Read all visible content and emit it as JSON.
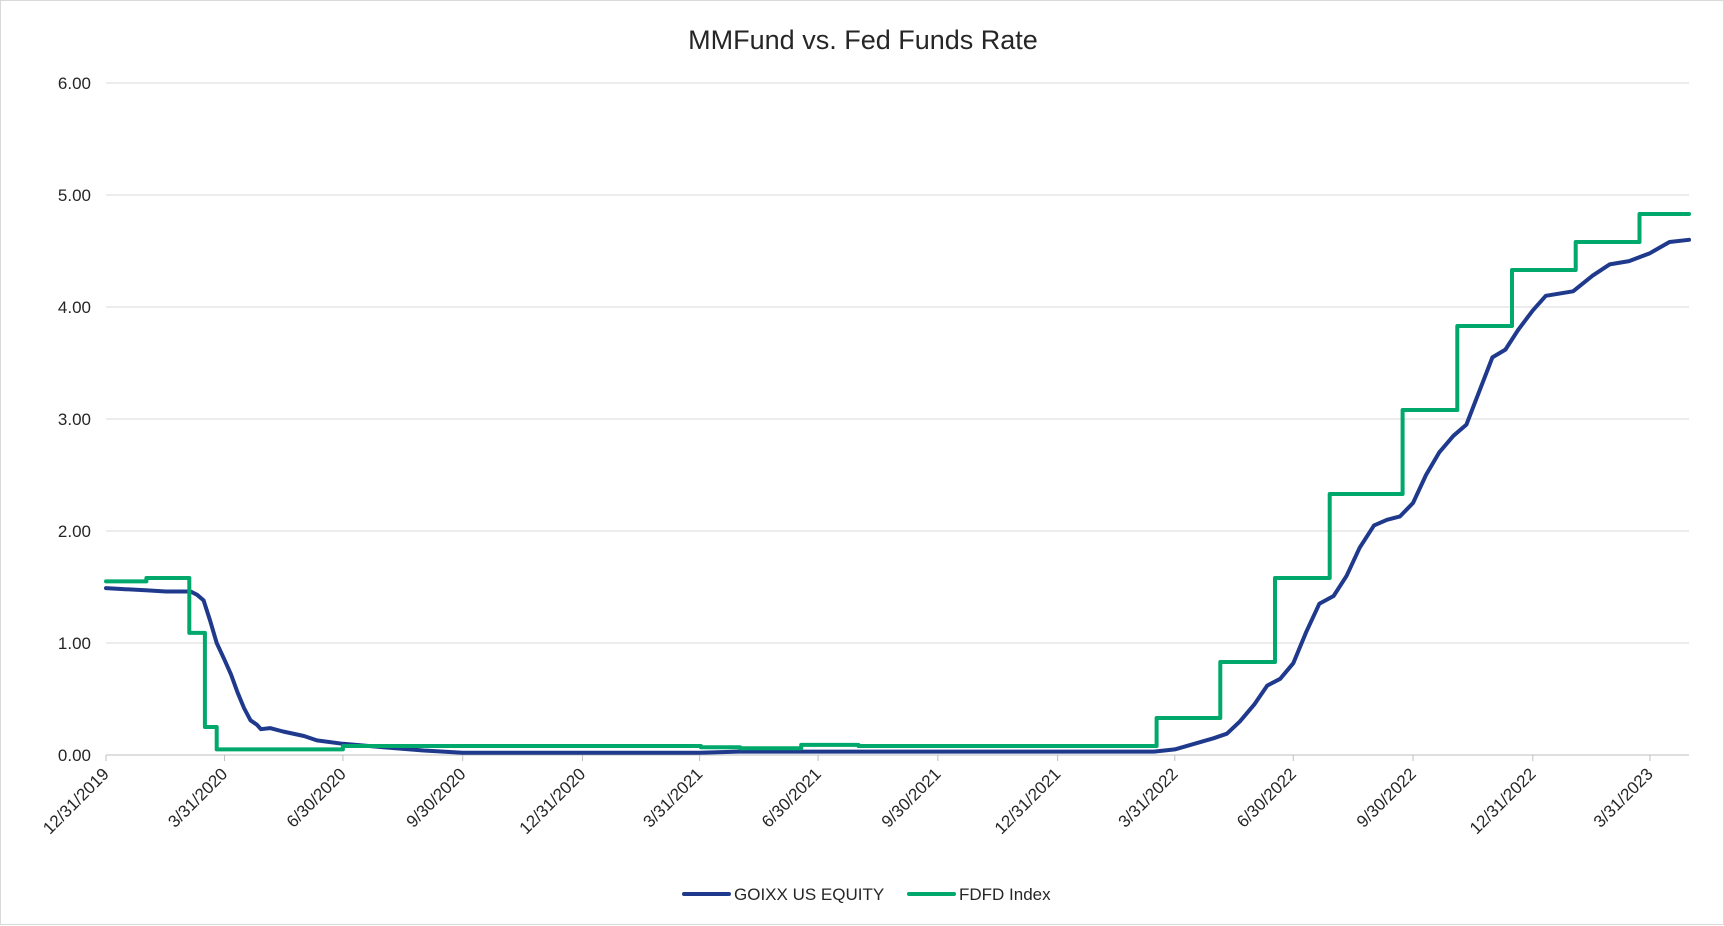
{
  "chart_data": {
    "type": "line",
    "title": "MMFund vs. Fed Funds Rate",
    "xlabel": "",
    "ylabel": "",
    "ylim": [
      0,
      6
    ],
    "xlim": [
      "2019-12-31",
      "2023-04-30"
    ],
    "y_ticks": [
      "0.00",
      "1.00",
      "2.00",
      "3.00",
      "4.00",
      "5.00",
      "6.00"
    ],
    "x_ticks": [
      {
        "label": "12/31/2019",
        "date": "2019-12-31"
      },
      {
        "label": "3/31/2020",
        "date": "2020-03-31"
      },
      {
        "label": "6/30/2020",
        "date": "2020-06-30"
      },
      {
        "label": "9/30/2020",
        "date": "2020-09-30"
      },
      {
        "label": "12/31/2020",
        "date": "2020-12-31"
      },
      {
        "label": "3/31/2021",
        "date": "2021-03-31"
      },
      {
        "label": "6/30/2021",
        "date": "2021-06-30"
      },
      {
        "label": "9/30/2021",
        "date": "2021-09-30"
      },
      {
        "label": "12/31/2021",
        "date": "2021-12-31"
      },
      {
        "label": "3/31/2022",
        "date": "2022-03-31"
      },
      {
        "label": "6/30/2022",
        "date": "2022-06-30"
      },
      {
        "label": "9/30/2022",
        "date": "2022-09-30"
      },
      {
        "label": "12/31/2022",
        "date": "2022-12-31"
      },
      {
        "label": "3/31/2023",
        "date": "2023-03-31"
      }
    ],
    "grid": true,
    "legend_position": "bottom",
    "series": [
      {
        "name": "GOIXX US EQUITY",
        "color": "#1f3a8c",
        "step": false,
        "points": [
          [
            "2019-12-31",
            1.49
          ],
          [
            "2020-01-15",
            1.48
          ],
          [
            "2020-02-01",
            1.47
          ],
          [
            "2020-02-15",
            1.46
          ],
          [
            "2020-03-05",
            1.46
          ],
          [
            "2020-03-10",
            1.43
          ],
          [
            "2020-03-15",
            1.38
          ],
          [
            "2020-03-20",
            1.2
          ],
          [
            "2020-03-25",
            1.0
          ],
          [
            "2020-03-31",
            0.85
          ],
          [
            "2020-04-05",
            0.72
          ],
          [
            "2020-04-10",
            0.56
          ],
          [
            "2020-04-15",
            0.42
          ],
          [
            "2020-04-20",
            0.31
          ],
          [
            "2020-04-25",
            0.27
          ],
          [
            "2020-04-28",
            0.23
          ],
          [
            "2020-05-05",
            0.24
          ],
          [
            "2020-05-15",
            0.21
          ],
          [
            "2020-05-31",
            0.17
          ],
          [
            "2020-06-10",
            0.13
          ],
          [
            "2020-06-30",
            0.1
          ],
          [
            "2020-07-31",
            0.07
          ],
          [
            "2020-08-31",
            0.04
          ],
          [
            "2020-09-15",
            0.03
          ],
          [
            "2020-09-30",
            0.02
          ],
          [
            "2020-12-31",
            0.02
          ],
          [
            "2021-03-31",
            0.02
          ],
          [
            "2021-04-30",
            0.03
          ],
          [
            "2021-06-30",
            0.03
          ],
          [
            "2021-12-31",
            0.03
          ],
          [
            "2022-03-15",
            0.03
          ],
          [
            "2022-03-31",
            0.05
          ],
          [
            "2022-04-15",
            0.1
          ],
          [
            "2022-04-30",
            0.15
          ],
          [
            "2022-05-10",
            0.19
          ],
          [
            "2022-05-20",
            0.3
          ],
          [
            "2022-05-31",
            0.45
          ],
          [
            "2022-06-10",
            0.62
          ],
          [
            "2022-06-20",
            0.68
          ],
          [
            "2022-06-30",
            0.82
          ],
          [
            "2022-07-10",
            1.1
          ],
          [
            "2022-07-20",
            1.35
          ],
          [
            "2022-07-31",
            1.42
          ],
          [
            "2022-08-10",
            1.6
          ],
          [
            "2022-08-20",
            1.85
          ],
          [
            "2022-08-31",
            2.05
          ],
          [
            "2022-09-10",
            2.1
          ],
          [
            "2022-09-20",
            2.13
          ],
          [
            "2022-09-30",
            2.25
          ],
          [
            "2022-10-10",
            2.5
          ],
          [
            "2022-10-20",
            2.7
          ],
          [
            "2022-10-31",
            2.85
          ],
          [
            "2022-11-10",
            2.95
          ],
          [
            "2022-11-20",
            3.25
          ],
          [
            "2022-11-30",
            3.55
          ],
          [
            "2022-12-10",
            3.62
          ],
          [
            "2022-12-20",
            3.8
          ],
          [
            "2022-12-31",
            3.97
          ],
          [
            "2023-01-10",
            4.1
          ],
          [
            "2023-01-31",
            4.14
          ],
          [
            "2023-02-15",
            4.28
          ],
          [
            "2023-02-28",
            4.38
          ],
          [
            "2023-03-15",
            4.41
          ],
          [
            "2023-03-31",
            4.48
          ],
          [
            "2023-04-15",
            4.58
          ],
          [
            "2023-04-30",
            4.6
          ]
        ]
      },
      {
        "name": "FDFD Index",
        "color": "#00a86b",
        "step": true,
        "points": [
          [
            "2019-12-31",
            1.55
          ],
          [
            "2020-01-31",
            1.58
          ],
          [
            "2020-03-04",
            1.09
          ],
          [
            "2020-03-16",
            0.25
          ],
          [
            "2020-03-25",
            0.05
          ],
          [
            "2020-04-30",
            0.05
          ],
          [
            "2020-06-30",
            0.08
          ],
          [
            "2020-12-31",
            0.08
          ],
          [
            "2021-04-01",
            0.07
          ],
          [
            "2021-05-01",
            0.06
          ],
          [
            "2021-06-17",
            0.09
          ],
          [
            "2021-07-31",
            0.08
          ],
          [
            "2021-12-31",
            0.08
          ],
          [
            "2022-03-17",
            0.33
          ],
          [
            "2022-05-05",
            0.83
          ],
          [
            "2022-06-16",
            1.58
          ],
          [
            "2022-07-28",
            2.33
          ],
          [
            "2022-09-22",
            3.08
          ],
          [
            "2022-11-03",
            3.83
          ],
          [
            "2022-12-15",
            4.33
          ],
          [
            "2023-02-02",
            4.58
          ],
          [
            "2023-03-23",
            4.83
          ],
          [
            "2023-04-30",
            4.83
          ]
        ]
      }
    ]
  }
}
